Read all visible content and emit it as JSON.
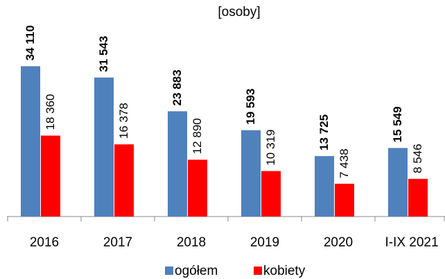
{
  "chart_data": {
    "type": "bar",
    "title": "[osoby]",
    "categories": [
      "2016",
      "2017",
      "2018",
      "2019",
      "2020",
      "I-IX 2021"
    ],
    "series": [
      {
        "name": "ogółem",
        "color": "#4f81bd",
        "values": [
          34110,
          31543,
          23883,
          19593,
          13725,
          15549
        ],
        "value_labels": [
          "34 110",
          "31 543",
          "23 883",
          "19 593",
          "13 725",
          "15 549"
        ]
      },
      {
        "name": "kobiety",
        "color": "#ff0000",
        "values": [
          18360,
          16378,
          12890,
          10319,
          7438,
          8546
        ],
        "value_labels": [
          "18 360",
          "16 378",
          "12 890",
          "10 319",
          "7 438",
          "8 546"
        ]
      }
    ],
    "ylim": [
      0,
      40000
    ],
    "legend": "bottom"
  }
}
